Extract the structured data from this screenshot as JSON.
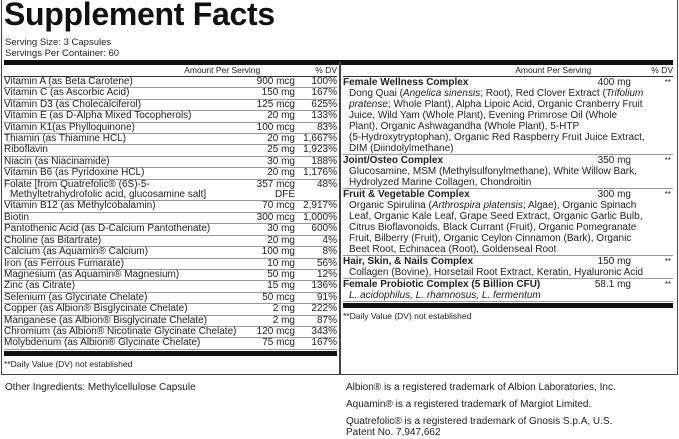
{
  "title": "Supplement Facts",
  "serving_size": "Serving Size: 3 Capsules",
  "servings_per_container": "Servings Per Container: 60",
  "header": {
    "amount": "Amount Per Serving",
    "dv": "% DV"
  },
  "left_rows": [
    {
      "name": "Vitamin A (as Beta Carotene)",
      "amount": "900 mcg",
      "dv": "100%"
    },
    {
      "name": "Vitamin C (as Ascorbic Acid)",
      "amount": "150 mg",
      "dv": "167%"
    },
    {
      "name": "Vitamin D3 (as Cholecalciferol)",
      "amount": "125 mcg",
      "dv": "625%"
    },
    {
      "name": "Vitamin E (as D-Alpha Mixed Tocopherols)",
      "amount": "20 mg",
      "dv": "133%"
    },
    {
      "name": "Vitamin K1(as Phylloquinone)",
      "amount": "100 mcg",
      "dv": "83%"
    },
    {
      "name": "Thiamin (as Thiamine HCL)",
      "amount": "20 mg",
      "dv": "1,667%"
    },
    {
      "name": "Riboflavin",
      "amount": "25 mg",
      "dv": "1,923%"
    },
    {
      "name": "Niacin (as Niacinamide)",
      "amount": "30 mg",
      "dv": "188%"
    },
    {
      "name": "Vitamin B6 (as Pyridoxine HCL)",
      "amount": "20 mg",
      "dv": "1,176%"
    },
    {
      "name": "Folate [from Quatrefolic® (6S)-5-",
      "name2": "Methyltetrahydrofolic acid, glucosamine salt]",
      "amount": "357 mcg DFE",
      "dv": "48%"
    },
    {
      "name": "Vitamin B12 (as Methylcobalamin)",
      "amount": "70 mcg",
      "dv": "2,917%"
    },
    {
      "name": "Biotin",
      "amount": "300 mcg",
      "dv": "1,000%"
    },
    {
      "name": "Pantothenic Acid (as D-Calcium Pantothenate)",
      "amount": "30 mg",
      "dv": "600%"
    },
    {
      "name": "Choline (as Bitartrate)",
      "amount": "20 mg",
      "dv": "4%"
    },
    {
      "name": "Calcium (as Aquamin® Calcium)",
      "amount": "100 mg",
      "dv": "8%"
    },
    {
      "name": "Iron (as Ferrous Fumarate)",
      "amount": "10 mg",
      "dv": "56%"
    },
    {
      "name": "Magnesium (as Aquamin® Magnesium)",
      "amount": "50 mg",
      "dv": "12%"
    },
    {
      "name": "Zinc (as Citrate)",
      "amount": "15 mg",
      "dv": "136%"
    },
    {
      "name": "Selenium (as Glycinate Chelate)",
      "amount": "50 mcg",
      "dv": "91%"
    },
    {
      "name": "Copper (as Albion® Bisglycinate Chelate)",
      "amount": "2 mg",
      "dv": "222%"
    },
    {
      "name": "Manganese (as Albion® Bisglycinate Chelate)",
      "amount": "2 mg",
      "dv": "87%"
    },
    {
      "name": "Chromium (as Albion® Nicotinate Glycinate Chelate)",
      "amount": "120 mcg",
      "dv": "343%"
    },
    {
      "name": "Molybdenum (as Albion® Glycinate Chelate)",
      "amount": "75 mcg",
      "dv": "167%"
    }
  ],
  "right_groups": [
    {
      "name": "Female Wellness Complex",
      "amount": "400 mg",
      "dv": "**",
      "lines": [
        [
          {
            "t": "Dong Quai ("
          },
          {
            "t": "Angelica sinensis",
            "i": true
          },
          {
            "t": "; Root), Red Clover Extract ("
          },
          {
            "t": "Trifolium",
            "i": true
          }
        ],
        [
          {
            "t": "pratense",
            "i": true
          },
          {
            "t": "; Whole Plant), Alpha Lipoic Acid, Organic Cranberry Fruit"
          }
        ],
        [
          {
            "t": "Juice, Wild Yam (Whole Plant), Evening Primrose Oil (Whole"
          }
        ],
        [
          {
            "t": "Plant), Organic Ashwagandha (Whole Plant), 5-HTP"
          }
        ],
        [
          {
            "t": "(5-Hydroxytryptophan), Organic Red Raspberry Fruit Juice Extract,"
          }
        ],
        [
          {
            "t": "DIM (Diindolylmethane)"
          }
        ]
      ]
    },
    {
      "name": "Joint/Osteo Complex",
      "amount": "350 mg",
      "dv": "**",
      "lines": [
        [
          {
            "t": "Glucosamine, MSM (Methylsulfonylmethane), White Willow Bark,"
          }
        ],
        [
          {
            "t": "Hydrolyzed Marine Collagen, Chondroitin"
          }
        ]
      ]
    },
    {
      "name": "Fruit & Vegetable Complex",
      "amount": "300 mg",
      "dv": "**",
      "lines": [
        [
          {
            "t": "Organic Spirulina ("
          },
          {
            "t": "Arthrospira platensis",
            "i": true
          },
          {
            "t": "; Algae), Organic Spinach"
          }
        ],
        [
          {
            "t": "Leaf, Organic Kale Leaf, Grape Seed Extract, Organic Garlic Bulb,"
          }
        ],
        [
          {
            "t": "Citrus Bioflavonoids, Black Currant (Fruit), Organic Pomegranate"
          }
        ],
        [
          {
            "t": "Fruit, Bilberry (Fruit), Organic Ceylon Cinnamon (Bark), Organic"
          }
        ],
        [
          {
            "t": "Beet Root, Echinacea (Root), Goldenseal Root"
          }
        ]
      ]
    },
    {
      "name": "Hair, Skin, & Nails Complex",
      "amount": "150 mg",
      "dv": "**",
      "lines": [
        [
          {
            "t": "Collagen (Bovine), Horsetail Root Extract, Keratin, Hyaluronic Acid"
          }
        ]
      ]
    },
    {
      "name": "Female Probiotic Complex (5 Billion CFU)",
      "amount": "58.1 mg",
      "dv": "**",
      "lines": [
        [
          {
            "t": "L. acidophilus, L. rhamnosus, L. fermentum",
            "i": true
          }
        ]
      ]
    }
  ],
  "footnote": "**Daily Value (DV) not established",
  "other_ingredients": "Other Ingredients: Methylcellulose Capsule",
  "trademarks": [
    "Albion® is a registered trademark of Albion Laboratories, Inc.",
    "Aquamin® is a registered trademark of Margiot Limited.",
    "Quatrefolic® is a registered trademark of Gnosis S.p.A, U.S.",
    "Patent No. 7,947,662"
  ]
}
